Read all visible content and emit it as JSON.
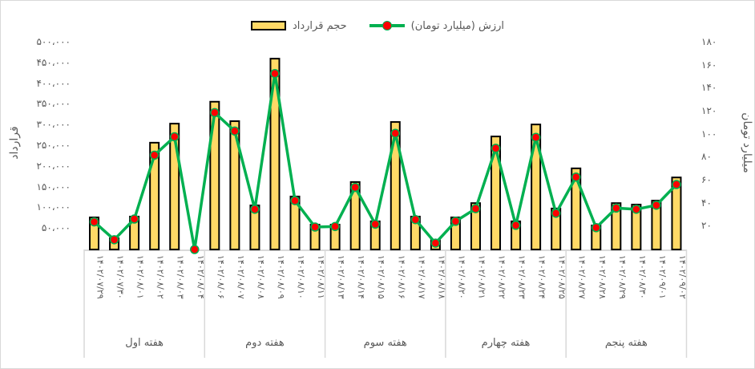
{
  "legend": {
    "bars_label": "حجم قرارداد",
    "line_label": "ارزش (میلیارد تومان)"
  },
  "axes": {
    "left_label": "قرارداد",
    "right_label": "میلیارد تومان",
    "left_ticks": [
      "۵۰۰،۰۰۰",
      "۴۵۰،۰۰۰",
      "۴۰۰،۰۰۰",
      "۳۵۰،۰۰۰",
      "۳۰۰،۰۰۰",
      "۲۵۰،۰۰۰",
      "۲۰۰،۰۰۰",
      "۱۵۰،۰۰۰",
      "۱۰۰،۰۰۰",
      "۵۰،۰۰۰"
    ],
    "right_ticks": [
      "۱۸۰",
      "۱۶۰",
      "۱۴۰",
      "۱۲۰",
      "۱۰۰",
      "۸۰",
      "۶۰",
      "۴۰",
      "۲۰"
    ]
  },
  "weeks": [
    "هفته اول",
    "هفته دوم",
    "هفته سوم",
    "هفته چهارم",
    "هفته پنجم"
  ],
  "colors": {
    "bar_fill": "#ffd966",
    "bar_stroke": "#000000",
    "line": "#00b050",
    "marker": "#ff0000",
    "gridline_axis": "#d9d9d9",
    "text": "#595959"
  },
  "chart_data": {
    "type": "bar",
    "title": "",
    "xlabel": "",
    "ylabel": "قرارداد",
    "y2label": "میلیارد تومان",
    "ylim": [
      0,
      500000
    ],
    "y2lim": [
      0,
      180
    ],
    "grid": false,
    "legend_position": "top",
    "groups": [
      "هفته اول",
      "هفته دوم",
      "هفته سوم",
      "هفته چهارم",
      "هفته پنجم"
    ],
    "categories": [
      "۱۴۰۲/۰۷/۲۹",
      "۱۴۰۲/۰۷/۳۰",
      "۱۴۰۲/۰۸/۰۱",
      "۱۴۰۲/۰۸/۰۲",
      "۱۴۰۲/۰۸/۰۳",
      "۱۴۰۲/۰۸/۰۴",
      "۱۴۰۲/۰۸/۰۶",
      "۱۴۰۲/۰۸/۰۷",
      "۱۴۰۲/۰۸/۰۸",
      "۱۴۰۲/۰۸/۰۹",
      "۱۴۰۲/۰۸/۱۰",
      "۱۴۰۲/۰۸/۱۱",
      "۱۴۰۲/۰۸/۱۳",
      "۱۴۰۲/۰۸/۱۴",
      "۱۴۰۲/۰۸/۱۵",
      "۱۴۰۲/۰۸/۱۶",
      "۱۴۰۲/۰۸/۱۷",
      "۱۴۰۲/۰۸/۱۸",
      "۱۴۰۲/۰۸/۲۰",
      "۱۴۰۲/۰۸/۲۱",
      "۱۴۰۲/۰۸/۲۲",
      "۱۴۰۲/۰۸/۲۳",
      "۱۴۰۲/۰۸/۲۴",
      "۱۴۰۲/۰۸/۲۵",
      "۱۴۰۲/۰۸/۲۷",
      "۱۴۰۲/۰۸/۲۸",
      "۱۴۰۲/۰۸/۲۹",
      "۱۴۰۲/۰۸/۳۰",
      "۱۴۰۲/۰۹/۰۱",
      "۱۴۰۲/۰۹/۰۲"
    ],
    "series": [
      {
        "name": "حجم قرارداد",
        "type": "bar",
        "axis": "left",
        "values": [
          77500,
          27000,
          79500,
          258000,
          304000,
          0,
          357000,
          310000,
          106500,
          461000,
          128000,
          60000,
          60000,
          163000,
          68000,
          308000,
          79500,
          23000,
          77500,
          112000,
          273000,
          68000,
          302000,
          99000,
          196000,
          58000,
          112000,
          108500,
          118000,
          174000
        ]
      },
      {
        "name": "ارزش (میلیارد تومان)",
        "type": "line",
        "axis": "right",
        "values": [
          24,
          8.5,
          26.5,
          82,
          98,
          0,
          119,
          103,
          35,
          153,
          42.5,
          19.5,
          20,
          54,
          22,
          101,
          26,
          5.5,
          24.5,
          35.5,
          88,
          21,
          97.5,
          31.5,
          63,
          19,
          36,
          35,
          38.5,
          56.5
        ]
      }
    ]
  }
}
